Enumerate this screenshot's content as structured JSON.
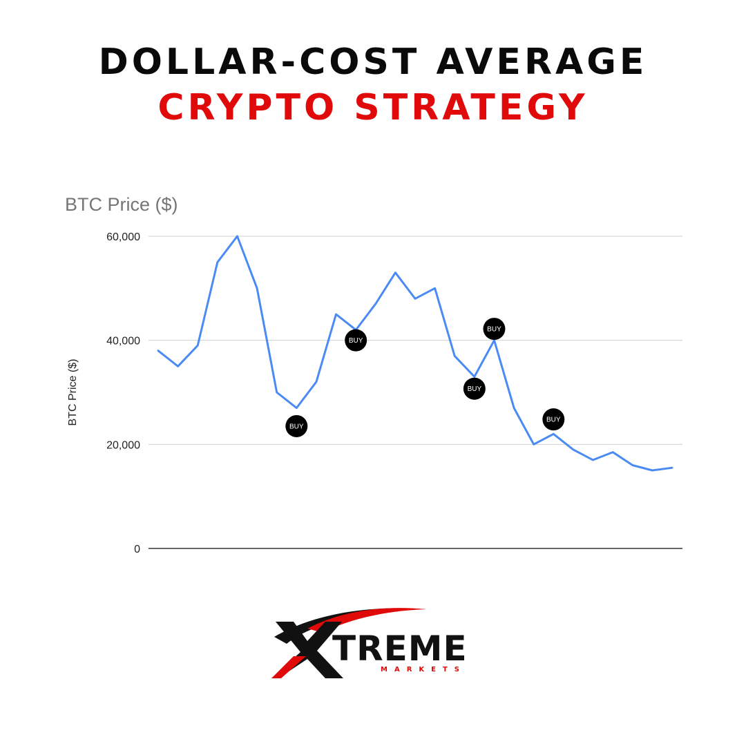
{
  "headline": {
    "line1": "DOLLAR-COST AVERAGE",
    "line2": "CRYPTO STRATEGY",
    "line1_color": "#0a0a0a",
    "line2_color": "#e00a0a"
  },
  "chart_data": {
    "type": "line",
    "title": "BTC Price ($)",
    "xlabel": "",
    "ylabel": "BTC Price ($)",
    "ylim": [
      0,
      60000
    ],
    "yticks": [
      "0",
      "20,000",
      "40,000",
      "60,000"
    ],
    "ytick_values": [
      0,
      20000,
      40000,
      60000
    ],
    "grid": true,
    "legend": "none",
    "series": [
      {
        "values": [
          38000,
          35000,
          39000,
          55000,
          60000,
          50000,
          30000,
          27000,
          32000,
          45000,
          42000,
          47000,
          53000,
          48000,
          50000,
          37000,
          33000,
          40000,
          27000,
          20000,
          22000,
          19000,
          17000,
          18500,
          16000,
          15000,
          15500
        ],
        "color": "#4a8af4"
      }
    ],
    "annotations": [
      {
        "label": "BUY",
        "index": 7,
        "y": 23500
      },
      {
        "label": "BUY",
        "index": 10,
        "y": 40000
      },
      {
        "label": "BUY",
        "index": 16,
        "y": 30700
      },
      {
        "label": "BUY",
        "index": 17,
        "y": 42200
      },
      {
        "label": "BUY",
        "index": 20,
        "y": 24800
      }
    ]
  },
  "logo": {
    "text": "TREME",
    "subtext": "MARKETS",
    "accent": "#e00a0a"
  }
}
